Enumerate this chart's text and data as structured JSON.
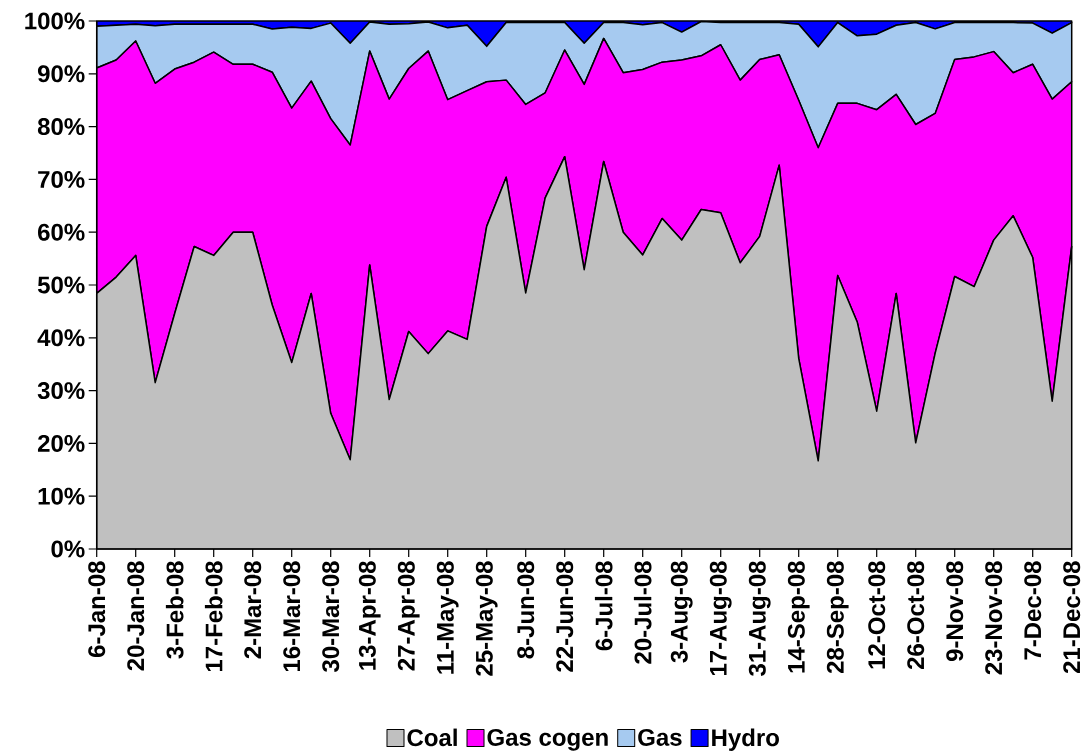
{
  "chart_data": {
    "type": "area",
    "stacked": true,
    "categories": [
      "6-Jan-08",
      null,
      "20-Jan-08",
      null,
      "3-Feb-08",
      null,
      "17-Feb-08",
      null,
      "2-Mar-08",
      null,
      "16-Mar-08",
      null,
      "30-Mar-08",
      null,
      "13-Apr-08",
      null,
      "27-Apr-08",
      null,
      "11-May-08",
      null,
      "25-May-08",
      null,
      "8-Jun-08",
      null,
      "22-Jun-08",
      null,
      "6-Jul-08",
      null,
      "20-Jul-08",
      null,
      "3-Aug-08",
      null,
      "17-Aug-08",
      null,
      "31-Aug-08",
      null,
      "14-Sep-08",
      null,
      "28-Sep-08",
      null,
      "12-Oct-08",
      null,
      "26-Oct-08",
      null,
      "9-Nov-08",
      null,
      "23-Nov-08",
      null,
      "7-Dec-08",
      null,
      "21-Dec-08"
    ],
    "series": [
      {
        "name": "Coal",
        "color": "#c0c0c0",
        "values": [
          48.4,
          51.5,
          55.6,
          31.5,
          44.6,
          57.3,
          55.6,
          60.0,
          60.0,
          46.2,
          35.3,
          48.4,
          25.7,
          16.9,
          53.8,
          28.3,
          41.2,
          37.0,
          41.3,
          39.7,
          61.1,
          70.4,
          48.5,
          66.5,
          74.3,
          52.9,
          73.4,
          60.0,
          55.7,
          62.6,
          58.5,
          64.3,
          63.7,
          54.2,
          59.2,
          72.7,
          36.1,
          16.7,
          51.8,
          43.0,
          26.1,
          48.4,
          20.1,
          37.1,
          51.6,
          49.7,
          58.5,
          63.1,
          55.2,
          28.0,
          57.3
        ]
      },
      {
        "name": "Gas cogen",
        "color": "#ff00ff",
        "values": [
          42.7,
          41.1,
          40.6,
          56.7,
          46.3,
          34.9,
          38.5,
          31.8,
          31.8,
          44.1,
          48.2,
          40.2,
          55.8,
          59.6,
          40.5,
          56.9,
          49.8,
          57.3,
          43.8,
          47.1,
          27.4,
          18.4,
          35.7,
          19.9,
          20.2,
          35.1,
          23.3,
          30.2,
          35.1,
          29.6,
          34.1,
          29.1,
          31.8,
          34.6,
          33.5,
          20.9,
          48.9,
          59.3,
          32.6,
          41.4,
          57.1,
          37.7,
          60.3,
          45.4,
          41.1,
          43.5,
          35.7,
          27.1,
          36.6,
          57.2,
          31.2
        ]
      },
      {
        "name": "Gas",
        "color": "#a6caf0",
        "values": [
          7.9,
          6.6,
          3.2,
          10.9,
          8.5,
          7.2,
          5.3,
          7.6,
          7.6,
          8.2,
          15.3,
          10.0,
          18.1,
          19.3,
          5.5,
          14.2,
          8.5,
          5.5,
          13.6,
          12.4,
          6.7,
          10.9,
          15.5,
          13.3,
          5.2,
          7.8,
          3.0,
          9.5,
          8.5,
          7.5,
          5.3,
          6.5,
          4.2,
          10.9,
          7.0,
          6.1,
          14.4,
          19.1,
          15.3,
          12.8,
          14.3,
          13.1,
          19.3,
          16.0,
          7.0,
          6.5,
          5.5,
          9.5,
          7.8,
          12.5,
          11.2
        ]
      },
      {
        "name": "Hydro",
        "color": "#0000ff",
        "values": [
          1.0,
          0.8,
          0.6,
          0.9,
          0.6,
          0.6,
          0.6,
          0.6,
          0.6,
          1.5,
          1.2,
          1.4,
          0.4,
          4.2,
          0.2,
          0.6,
          0.5,
          0.2,
          1.3,
          0.8,
          4.8,
          0.3,
          0.3,
          0.3,
          0.3,
          4.2,
          0.3,
          0.3,
          0.7,
          0.3,
          2.1,
          0.1,
          0.3,
          0.3,
          0.3,
          0.3,
          0.6,
          4.9,
          0.3,
          2.8,
          2.5,
          0.8,
          0.3,
          1.5,
          0.3,
          0.3,
          0.3,
          0.3,
          0.4,
          2.3,
          0.3
        ]
      }
    ],
    "ylim": [
      0,
      100
    ],
    "yticks": [
      {
        "value": 0,
        "label": "0%"
      },
      {
        "value": 10,
        "label": "10%"
      },
      {
        "value": 20,
        "label": "20%"
      },
      {
        "value": 30,
        "label": "30%"
      },
      {
        "value": 40,
        "label": "40%"
      },
      {
        "value": 50,
        "label": "50%"
      },
      {
        "value": 60,
        "label": "60%"
      },
      {
        "value": 70,
        "label": "70%"
      },
      {
        "value": 80,
        "label": "80%"
      },
      {
        "value": 90,
        "label": "90%"
      },
      {
        "value": 100,
        "label": "100%"
      }
    ],
    "grid": false,
    "legend": "bottom"
  }
}
